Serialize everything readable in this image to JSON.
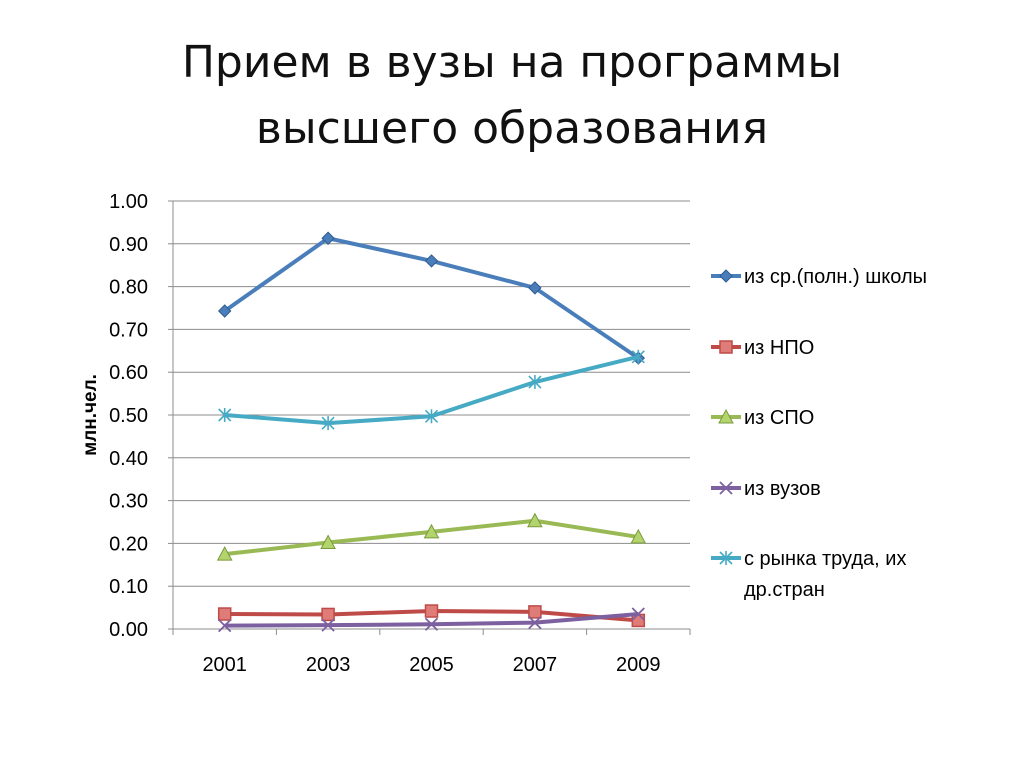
{
  "slide": {
    "title_line1": "Прием в вузы на программы",
    "title_line2": "высшего образования"
  },
  "chart_data": {
    "type": "line",
    "ylabel": "млн.чел.",
    "xlabel": "",
    "categories": [
      "2001",
      "2003",
      "2005",
      "2007",
      "2009"
    ],
    "ylim": [
      0,
      1.0
    ],
    "yticks": [
      "0.00",
      "0.10",
      "0.20",
      "0.30",
      "0.40",
      "0.50",
      "0.60",
      "0.70",
      "0.80",
      "0.90",
      "1.00"
    ],
    "grid": true,
    "legend_position": "right",
    "series": [
      {
        "name": "из ср.(полн.) школы",
        "color": "#4a7ebb",
        "marker": "diamond",
        "values": [
          0.743,
          0.913,
          0.86,
          0.797,
          0.633
        ]
      },
      {
        "name": "из НПО",
        "color": "#be4b48",
        "marker": "square",
        "values": [
          0.035,
          0.034,
          0.042,
          0.04,
          0.02
        ]
      },
      {
        "name": "из СПО",
        "color": "#98b954",
        "marker": "triangle",
        "values": [
          0.175,
          0.202,
          0.227,
          0.253,
          0.215
        ]
      },
      {
        "name": "из вузов",
        "color": "#7d60a0",
        "marker": "x",
        "values": [
          0.008,
          0.009,
          0.011,
          0.015,
          0.035
        ]
      },
      {
        "name": "с рынка труда, их др.стран",
        "name_lines": [
          "с рынка труда, их",
          "др.стран"
        ],
        "color": "#46aac5",
        "marker": "star",
        "values": [
          0.5,
          0.481,
          0.497,
          0.577,
          0.636
        ]
      }
    ]
  }
}
